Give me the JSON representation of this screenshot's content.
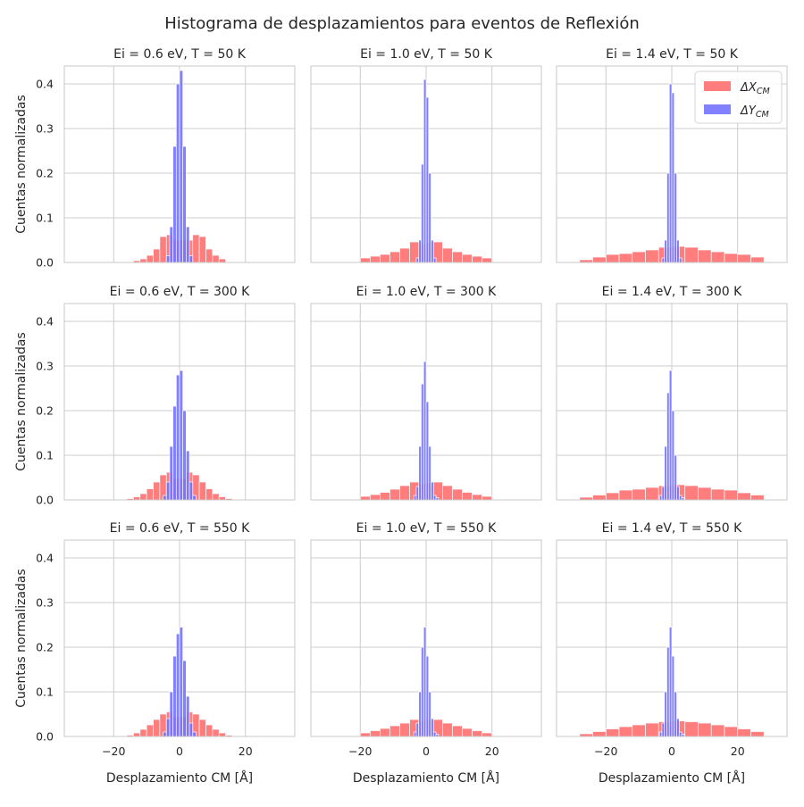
{
  "figure": {
    "suptitle": "Histograma de desplazamientos para eventos de Reflexión",
    "xlabel": "Desplazamiento CM [Å]",
    "ylabel": "Cuentas normalizadas"
  },
  "legend": [
    {
      "name": "ΔX_CM",
      "main": "ΔX",
      "sub": "CM",
      "color": "#ff6f6f"
    },
    {
      "name": "ΔY_CM",
      "main": "ΔY",
      "sub": "CM",
      "color": "#7373ff"
    }
  ],
  "chart_data": {
    "type": "bar",
    "layout": "3x3 grid of histograms with shared axes",
    "xlim": [
      -35,
      35
    ],
    "ylim": [
      0,
      0.44
    ],
    "xticks": [
      -20,
      0,
      20
    ],
    "yticks": [
      0.0,
      0.1,
      0.2,
      0.3,
      0.4
    ],
    "xtick_labels": [
      "−20",
      "0",
      "20"
    ],
    "ytick_labels": [
      "0.0",
      "0.1",
      "0.2",
      "0.3",
      "0.4"
    ],
    "grid": true,
    "legend_position": "top-right of panel Ei = 1.4 eV, T = 50 K",
    "series_colors": {
      "ΔX_CM": "#ff6f6f",
      "ΔY_CM": "#7373ff"
    },
    "panels": [
      {
        "title": "Ei = 0.6 eV, T = 50 K",
        "dx": {
          "bin_edges": [
            -14,
            -12,
            -10,
            -8,
            -6,
            -4,
            -2,
            0,
            2,
            4,
            6,
            8,
            10,
            12,
            14
          ],
          "values": [
            0.004,
            0.008,
            0.016,
            0.03,
            0.058,
            0.062,
            0.05,
            0.05,
            0.05,
            0.062,
            0.058,
            0.03,
            0.016,
            0.008
          ]
        },
        "dy": {
          "bin_edges": [
            -4,
            -3,
            -2,
            -1,
            0,
            1,
            2,
            3,
            4
          ],
          "values": [
            0.015,
            0.08,
            0.26,
            0.4,
            0.43,
            0.26,
            0.08,
            0.015
          ]
        }
      },
      {
        "title": "Ei = 1.0 eV, T = 50 K",
        "dx": {
          "bin_edges": [
            -20,
            -17,
            -14,
            -11,
            -8,
            -5,
            -2,
            0,
            2,
            5,
            8,
            11,
            14,
            17,
            20
          ],
          "values": [
            0.01,
            0.014,
            0.018,
            0.024,
            0.032,
            0.046,
            0.042,
            0.044,
            0.046,
            0.032,
            0.024,
            0.018,
            0.014,
            0.01
          ]
        },
        "dy": {
          "bin_edges": [
            -3,
            -2.25,
            -1.5,
            -0.75,
            0,
            0.75,
            1.5,
            2.25,
            3
          ],
          "values": [
            0.01,
            0.05,
            0.22,
            0.41,
            0.37,
            0.2,
            0.05,
            0.01
          ]
        }
      },
      {
        "title": "Ei = 1.4 eV, T = 50 K",
        "dx": {
          "bin_edges": [
            -28,
            -24,
            -20,
            -16,
            -12,
            -8,
            -4,
            0,
            4,
            8,
            12,
            16,
            20,
            24,
            28
          ],
          "values": [
            0.006,
            0.012,
            0.018,
            0.02,
            0.024,
            0.028,
            0.034,
            0.036,
            0.034,
            0.028,
            0.024,
            0.02,
            0.018,
            0.012
          ]
        },
        "dy": {
          "bin_edges": [
            -3,
            -2.25,
            -1.5,
            -0.75,
            0,
            0.75,
            1.5,
            2.25,
            3
          ],
          "values": [
            0.01,
            0.05,
            0.2,
            0.4,
            0.38,
            0.2,
            0.05,
            0.01
          ]
        }
      },
      {
        "title": "Ei = 0.6 eV, T = 300 K",
        "dx": {
          "bin_edges": [
            -16,
            -14,
            -12,
            -10,
            -8,
            -6,
            -4,
            -2,
            0,
            2,
            4,
            6,
            8,
            10,
            12,
            14,
            16
          ],
          "values": [
            0.003,
            0.007,
            0.014,
            0.025,
            0.04,
            0.056,
            0.062,
            0.048,
            0.048,
            0.062,
            0.056,
            0.04,
            0.025,
            0.014,
            0.007,
            0.003
          ]
        },
        "dy": {
          "bin_edges": [
            -5,
            -4,
            -3,
            -2,
            -1,
            0,
            1,
            2,
            3,
            4,
            5
          ],
          "values": [
            0.01,
            0.04,
            0.12,
            0.21,
            0.28,
            0.29,
            0.2,
            0.11,
            0.04,
            0.01
          ]
        }
      },
      {
        "title": "Ei = 1.0 eV, T = 300 K",
        "dx": {
          "bin_edges": [
            -20,
            -17,
            -14,
            -11,
            -8,
            -5,
            -2,
            0,
            2,
            5,
            8,
            11,
            14,
            17,
            20
          ],
          "values": [
            0.008,
            0.012,
            0.017,
            0.024,
            0.032,
            0.04,
            0.036,
            0.038,
            0.04,
            0.032,
            0.024,
            0.017,
            0.012,
            0.008
          ]
        },
        "dy": {
          "bin_edges": [
            -3.75,
            -3,
            -2.25,
            -1.5,
            -0.75,
            0,
            0.75,
            1.5,
            2.25,
            3,
            3.75
          ],
          "values": [
            0.01,
            0.03,
            0.12,
            0.26,
            0.31,
            0.22,
            0.12,
            0.04,
            0.01,
            0.005
          ]
        }
      },
      {
        "title": "Ei = 1.4 eV, T = 300 K",
        "dx": {
          "bin_edges": [
            -28,
            -24,
            -20,
            -16,
            -12,
            -8,
            -4,
            0,
            4,
            8,
            12,
            16,
            20,
            24,
            28
          ],
          "values": [
            0.006,
            0.011,
            0.016,
            0.022,
            0.024,
            0.028,
            0.032,
            0.034,
            0.032,
            0.028,
            0.024,
            0.022,
            0.016,
            0.011
          ]
        },
        "dy": {
          "bin_edges": [
            -3.75,
            -3,
            -2.25,
            -1.5,
            -0.75,
            0,
            0.75,
            1.5,
            2.25,
            3,
            3.75
          ],
          "values": [
            0.01,
            0.03,
            0.12,
            0.24,
            0.29,
            0.2,
            0.1,
            0.03,
            0.01,
            0.005
          ]
        }
      },
      {
        "title": "Ei = 0.6 eV, T = 550 K",
        "dx": {
          "bin_edges": [
            -16,
            -14,
            -12,
            -10,
            -8,
            -6,
            -4,
            -2,
            0,
            2,
            4,
            6,
            8,
            10,
            12,
            14,
            16
          ],
          "values": [
            0.003,
            0.008,
            0.016,
            0.026,
            0.038,
            0.05,
            0.055,
            0.044,
            0.044,
            0.055,
            0.05,
            0.038,
            0.026,
            0.016,
            0.008,
            0.003
          ]
        },
        "dy": {
          "bin_edges": [
            -5,
            -4,
            -3,
            -2,
            -1,
            0,
            1,
            2,
            3,
            4,
            5
          ],
          "values": [
            0.01,
            0.04,
            0.1,
            0.18,
            0.23,
            0.245,
            0.17,
            0.09,
            0.03,
            0.01
          ]
        }
      },
      {
        "title": "Ei = 1.0 eV, T = 550 K",
        "dx": {
          "bin_edges": [
            -20,
            -17,
            -14,
            -11,
            -8,
            -5,
            -2,
            0,
            2,
            5,
            8,
            11,
            14,
            17,
            20
          ],
          "values": [
            0.008,
            0.013,
            0.018,
            0.024,
            0.03,
            0.038,
            0.036,
            0.038,
            0.038,
            0.03,
            0.024,
            0.018,
            0.013,
            0.008
          ]
        },
        "dy": {
          "bin_edges": [
            -3.75,
            -3,
            -2.25,
            -1.5,
            -0.75,
            0,
            0.75,
            1.5,
            2.25,
            3,
            3.75
          ],
          "values": [
            0.01,
            0.03,
            0.1,
            0.2,
            0.245,
            0.18,
            0.1,
            0.04,
            0.01,
            0.005
          ]
        }
      },
      {
        "title": "Ei = 1.4 eV, T = 550 K",
        "dx": {
          "bin_edges": [
            -28,
            -24,
            -20,
            -16,
            -12,
            -8,
            -4,
            0,
            4,
            8,
            12,
            16,
            20,
            24,
            28
          ],
          "values": [
            0.006,
            0.011,
            0.017,
            0.022,
            0.026,
            0.03,
            0.033,
            0.035,
            0.033,
            0.03,
            0.026,
            0.022,
            0.017,
            0.011
          ]
        },
        "dy": {
          "bin_edges": [
            -3.75,
            -3,
            -2.25,
            -1.5,
            -0.75,
            0,
            0.75,
            1.5,
            2.25,
            3,
            3.75
          ],
          "values": [
            0.01,
            0.03,
            0.1,
            0.2,
            0.245,
            0.18,
            0.1,
            0.04,
            0.01,
            0.005
          ]
        }
      }
    ]
  }
}
